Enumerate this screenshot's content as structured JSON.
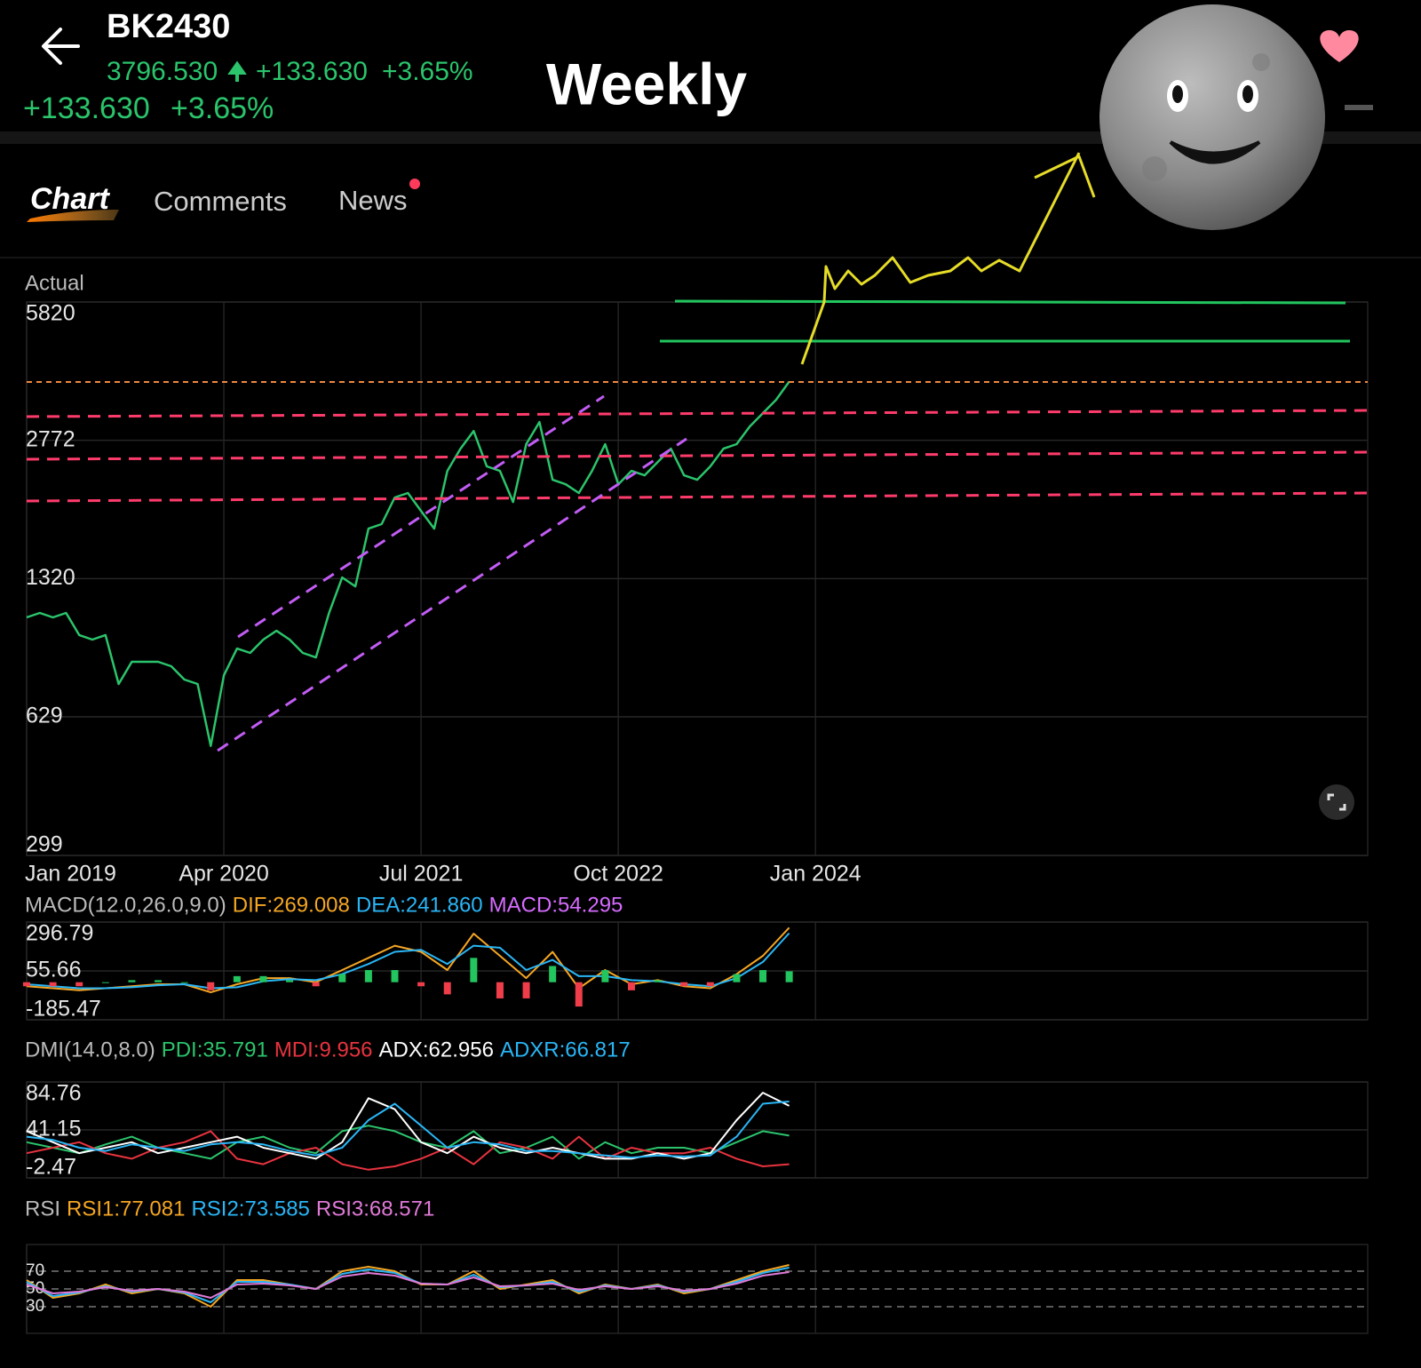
{
  "header": {
    "symbol": "BK2430",
    "price": "3796.530",
    "change": "+133.630",
    "change_pct": "+3.65%"
  },
  "annotation": "Weekly",
  "tabs": [
    "Chart",
    "Comments",
    "News"
  ],
  "chart_data": [
    {
      "type": "line",
      "title": "Actual",
      "log_scale": true,
      "grid": true,
      "xlim": [
        "2019-01",
        "2027-07"
      ],
      "xticks": [
        {
          "value": "2019-01",
          "label": "Jan 2019"
        },
        {
          "value": "2020-04",
          "label": "Apr 2020"
        },
        {
          "value": "2021-07",
          "label": "Jul 2021"
        },
        {
          "value": "2022-10",
          "label": "Oct 2022"
        },
        {
          "value": "2024-01",
          "label": "Jan 2024"
        }
      ],
      "ylim": [
        299,
        5820
      ],
      "yticks": [
        299,
        629,
        1320,
        2772,
        5820
      ],
      "x": [
        "2019-01",
        "2019-02",
        "2019-03",
        "2019-04",
        "2019-05",
        "2019-06",
        "2019-07",
        "2019-08",
        "2019-09",
        "2019-10",
        "2019-11",
        "2019-12",
        "2020-01",
        "2020-02",
        "2020-03",
        "2020-04",
        "2020-05",
        "2020-06",
        "2020-07",
        "2020-08",
        "2020-09",
        "2020-10",
        "2020-11",
        "2020-12",
        "2021-01",
        "2021-02",
        "2021-03",
        "2021-04",
        "2021-05",
        "2021-06",
        "2021-07",
        "2021-08",
        "2021-09",
        "2021-10",
        "2021-11",
        "2021-12",
        "2022-01",
        "2022-02",
        "2022-03",
        "2022-04",
        "2022-05",
        "2022-06",
        "2022-07",
        "2022-08",
        "2022-09",
        "2022-10",
        "2022-11",
        "2022-12",
        "2023-01",
        "2023-02",
        "2023-03",
        "2023-04",
        "2023-05",
        "2023-06",
        "2023-07",
        "2023-08",
        "2023-09",
        "2023-10",
        "2023-11"
      ],
      "series": [
        {
          "color": "#2bc46c",
          "values": [
            1072,
            1098,
            1072,
            1098,
            975,
            952,
            975,
            750,
            845,
            845,
            845,
            825,
            768,
            750,
            538,
            786,
            907,
            886,
            952,
            998,
            952,
            886,
            865,
            1098,
            1328,
            1266,
            1726,
            1768,
            2040,
            2089,
            1898,
            1726,
            2353,
            2650,
            2914,
            2410,
            2353,
            1991,
            2715,
            3058,
            2243,
            2189,
            2089,
            2353,
            2715,
            2189,
            2353,
            2297,
            2467,
            2650,
            2297,
            2243,
            2410,
            2650,
            2715,
            2985,
            3206,
            3444,
            3797
          ]
        }
      ]
    },
    {
      "type": "line",
      "title": "MACD(12.0,26.0,9.0)",
      "grid": true,
      "ylim": [
        -185.47,
        296.79
      ],
      "yticks": [
        -185.47,
        55.66,
        296.79
      ],
      "x": [
        "2019-01",
        "2019-03",
        "2019-05",
        "2019-07",
        "2019-09",
        "2019-11",
        "2020-01",
        "2020-03",
        "2020-05",
        "2020-07",
        "2020-09",
        "2020-11",
        "2021-01",
        "2021-03",
        "2021-05",
        "2021-07",
        "2021-09",
        "2021-11",
        "2022-01",
        "2022-03",
        "2022-05",
        "2022-07",
        "2022-09",
        "2022-11",
        "2023-01",
        "2023-03",
        "2023-05",
        "2023-07",
        "2023-09",
        "2023-11"
      ],
      "series": [
        {
          "name": "DIF:269.008",
          "color": "#f5a623",
          "values": [
            -20,
            -30,
            -40,
            -30,
            -20,
            -10,
            -10,
            -50,
            -10,
            20,
            20,
            0,
            60,
            120,
            180,
            150,
            60,
            240,
            130,
            20,
            150,
            -30,
            60,
            -10,
            10,
            -20,
            -30,
            40,
            130,
            269
          ]
        },
        {
          "name": "DEA:241.860",
          "color": "#29b6f6",
          "values": [
            -10,
            -20,
            -30,
            -30,
            -25,
            -15,
            -10,
            -30,
            -25,
            5,
            15,
            10,
            40,
            90,
            150,
            160,
            90,
            180,
            170,
            60,
            110,
            30,
            30,
            10,
            5,
            -10,
            -20,
            20,
            100,
            242
          ]
        },
        {
          "name": "MACD:54.295",
          "color": "#d66bff",
          "style": "bar",
          "up_color": "#22c55e",
          "down_color": "#ef3e4a",
          "values": [
            -20,
            -20,
            -20,
            0,
            10,
            10,
            0,
            -40,
            30,
            30,
            10,
            -20,
            40,
            60,
            60,
            -20,
            -60,
            120,
            -80,
            -80,
            80,
            -120,
            60,
            -40,
            10,
            -20,
            -20,
            40,
            60,
            54
          ]
        }
      ]
    },
    {
      "type": "line",
      "title": "DMI(14.0,8.0)",
      "grid": true,
      "ylim": [
        -2.47,
        84.76
      ],
      "yticks": [
        -2.47,
        41.15,
        84.76
      ],
      "x": [
        "2019-01",
        "2019-03",
        "2019-05",
        "2019-07",
        "2019-09",
        "2019-11",
        "2020-01",
        "2020-03",
        "2020-05",
        "2020-07",
        "2020-09",
        "2020-11",
        "2021-01",
        "2021-03",
        "2021-05",
        "2021-07",
        "2021-09",
        "2021-11",
        "2022-01",
        "2022-03",
        "2022-05",
        "2022-07",
        "2022-09",
        "2022-11",
        "2023-01",
        "2023-03",
        "2023-05",
        "2023-07",
        "2023-09",
        "2023-11"
      ],
      "series": [
        {
          "name": "PDI:35.791",
          "color": "#2bc46c",
          "values": [
            30,
            25,
            20,
            28,
            35,
            25,
            20,
            15,
            30,
            35,
            25,
            20,
            40,
            45,
            40,
            30,
            25,
            40,
            20,
            25,
            35,
            15,
            30,
            20,
            25,
            25,
            20,
            30,
            40,
            36
          ]
        },
        {
          "name": "MDI:9.956",
          "color": "#e8333f",
          "values": [
            20,
            25,
            30,
            20,
            15,
            25,
            30,
            40,
            15,
            10,
            20,
            25,
            10,
            5,
            8,
            15,
            25,
            10,
            30,
            25,
            15,
            35,
            15,
            25,
            20,
            20,
            25,
            15,
            8,
            10
          ]
        },
        {
          "name": "ADX:62.956",
          "color": "#ffffff",
          "values": [
            40,
            30,
            20,
            25,
            30,
            20,
            25,
            30,
            35,
            25,
            20,
            15,
            30,
            70,
            60,
            30,
            20,
            35,
            25,
            20,
            25,
            20,
            15,
            15,
            20,
            15,
            20,
            50,
            75,
            63
          ]
        },
        {
          "name": "ADXR:66.817",
          "color": "#29b6f6",
          "values": [
            35,
            32,
            25,
            22,
            28,
            25,
            22,
            28,
            30,
            28,
            22,
            18,
            25,
            50,
            65,
            45,
            25,
            30,
            28,
            22,
            22,
            20,
            18,
            16,
            18,
            17,
            18,
            35,
            65,
            67
          ]
        }
      ]
    },
    {
      "type": "line",
      "title": "RSI",
      "grid": true,
      "grid_style": "dashed",
      "ylim": [
        0,
        100
      ],
      "yticks": [
        30,
        50,
        70
      ],
      "x": [
        "2019-01",
        "2019-03",
        "2019-05",
        "2019-07",
        "2019-09",
        "2019-11",
        "2020-01",
        "2020-03",
        "2020-05",
        "2020-07",
        "2020-09",
        "2020-11",
        "2021-01",
        "2021-03",
        "2021-05",
        "2021-07",
        "2021-09",
        "2021-11",
        "2022-01",
        "2022-03",
        "2022-05",
        "2022-07",
        "2022-09",
        "2022-11",
        "2023-01",
        "2023-03",
        "2023-05",
        "2023-07",
        "2023-09",
        "2023-11"
      ],
      "series": [
        {
          "name": "RSI1:77.081",
          "color": "#f5a623",
          "values": [
            60,
            40,
            45,
            55,
            45,
            50,
            45,
            30,
            60,
            60,
            55,
            50,
            70,
            75,
            70,
            55,
            55,
            70,
            50,
            55,
            60,
            45,
            55,
            50,
            55,
            45,
            50,
            60,
            70,
            77
          ]
        },
        {
          "name": "RSI2:73.585",
          "color": "#29b6f6",
          "values": [
            58,
            42,
            46,
            53,
            47,
            50,
            46,
            35,
            58,
            58,
            55,
            50,
            67,
            72,
            68,
            56,
            55,
            66,
            52,
            54,
            58,
            47,
            54,
            50,
            54,
            47,
            50,
            58,
            68,
            74
          ]
        },
        {
          "name": "RSI3:68.571",
          "color": "#e07ad8",
          "values": [
            55,
            45,
            47,
            52,
            48,
            50,
            47,
            40,
            55,
            56,
            54,
            50,
            64,
            68,
            65,
            56,
            55,
            63,
            53,
            54,
            56,
            49,
            53,
            50,
            53,
            48,
            50,
            56,
            65,
            69
          ]
        }
      ]
    }
  ]
}
